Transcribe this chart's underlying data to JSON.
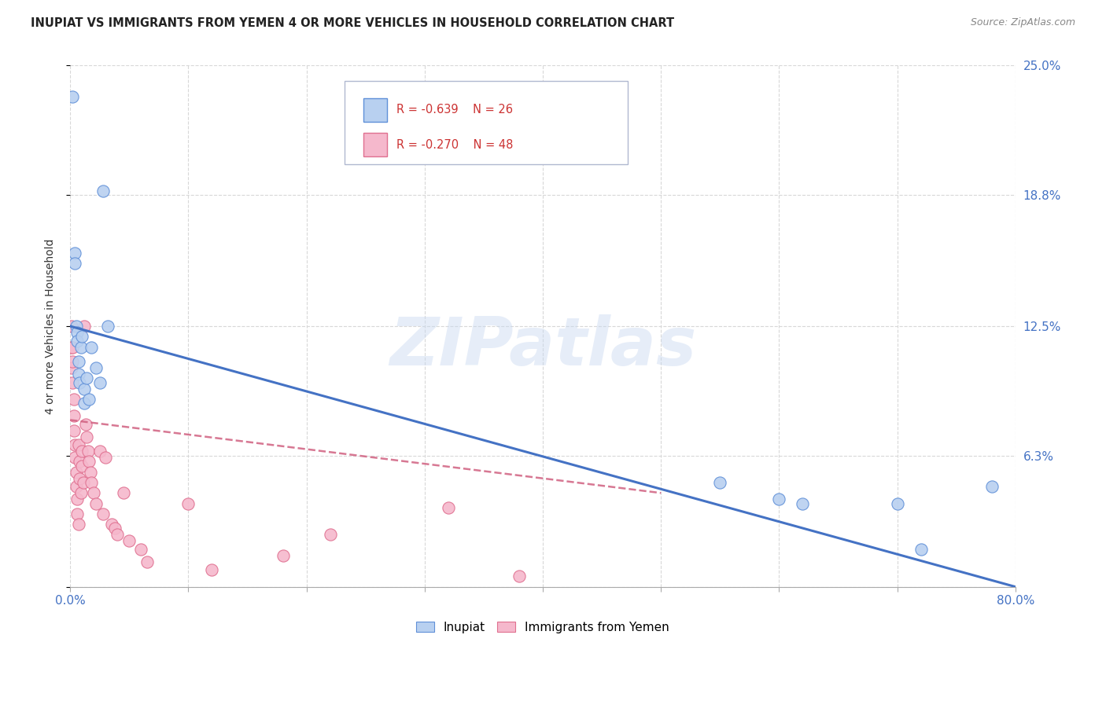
{
  "title": "INUPIAT VS IMMIGRANTS FROM YEMEN 4 OR MORE VEHICLES IN HOUSEHOLD CORRELATION CHART",
  "source": "Source: ZipAtlas.com",
  "ylabel": "4 or more Vehicles in Household",
  "xlim": [
    0.0,
    0.8
  ],
  "ylim": [
    0.0,
    0.25
  ],
  "xticks": [
    0.0,
    0.1,
    0.2,
    0.3,
    0.4,
    0.5,
    0.6,
    0.7,
    0.8
  ],
  "xticklabels": [
    "0.0%",
    "",
    "",
    "",
    "",
    "",
    "",
    "",
    "80.0%"
  ],
  "ytick_positions": [
    0.0,
    0.063,
    0.125,
    0.188,
    0.25
  ],
  "ytick_labels": [
    "",
    "6.3%",
    "12.5%",
    "18.8%",
    "25.0%"
  ],
  "inupiat_R": -0.639,
  "inupiat_N": 26,
  "yemen_R": -0.27,
  "yemen_N": 48,
  "inupiat_color": "#b8d0f0",
  "yemen_color": "#f5b8cc",
  "inupiat_edge_color": "#6090d8",
  "yemen_edge_color": "#e07090",
  "inupiat_line_color": "#4472c4",
  "yemen_line_color": "#d06080",
  "inupiat_x": [
    0.002,
    0.004,
    0.004,
    0.005,
    0.006,
    0.006,
    0.007,
    0.007,
    0.008,
    0.009,
    0.01,
    0.012,
    0.012,
    0.014,
    0.016,
    0.018,
    0.022,
    0.025,
    0.028,
    0.032,
    0.55,
    0.6,
    0.62,
    0.7,
    0.72,
    0.78
  ],
  "inupiat_y": [
    0.235,
    0.16,
    0.155,
    0.125,
    0.122,
    0.118,
    0.108,
    0.102,
    0.098,
    0.115,
    0.12,
    0.095,
    0.088,
    0.1,
    0.09,
    0.115,
    0.105,
    0.098,
    0.19,
    0.125,
    0.05,
    0.042,
    0.04,
    0.04,
    0.018,
    0.048
  ],
  "yemen_x": [
    0.001,
    0.001,
    0.001,
    0.002,
    0.002,
    0.002,
    0.003,
    0.003,
    0.003,
    0.004,
    0.004,
    0.005,
    0.005,
    0.006,
    0.006,
    0.007,
    0.007,
    0.008,
    0.008,
    0.009,
    0.01,
    0.01,
    0.011,
    0.012,
    0.013,
    0.014,
    0.015,
    0.016,
    0.017,
    0.018,
    0.02,
    0.022,
    0.025,
    0.028,
    0.03,
    0.035,
    0.038,
    0.04,
    0.045,
    0.05,
    0.06,
    0.065,
    0.1,
    0.12,
    0.18,
    0.22,
    0.32,
    0.38
  ],
  "yemen_y": [
    0.125,
    0.115,
    0.105,
    0.115,
    0.108,
    0.098,
    0.09,
    0.082,
    0.075,
    0.068,
    0.062,
    0.055,
    0.048,
    0.042,
    0.035,
    0.03,
    0.068,
    0.06,
    0.052,
    0.045,
    0.065,
    0.058,
    0.05,
    0.125,
    0.078,
    0.072,
    0.065,
    0.06,
    0.055,
    0.05,
    0.045,
    0.04,
    0.065,
    0.035,
    0.062,
    0.03,
    0.028,
    0.025,
    0.045,
    0.022,
    0.018,
    0.012,
    0.04,
    0.008,
    0.015,
    0.025,
    0.038,
    0.005
  ],
  "watermark": "ZIPatlas",
  "background_color": "#ffffff",
  "grid_color": "#d8d8d8",
  "legend_box_color": "#f0f4fc",
  "legend_border_color": "#b0b8d0"
}
